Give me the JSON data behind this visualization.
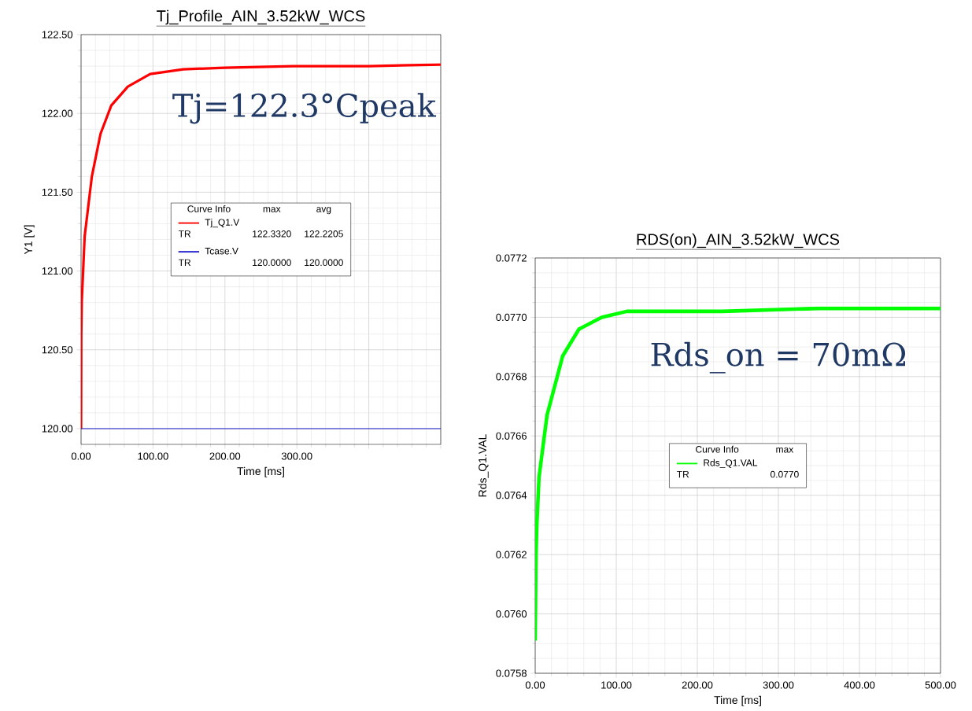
{
  "chart_data": [
    {
      "type": "line",
      "title": "Tj_Profile_AIN_3.52kW_WCS",
      "xlabel": "Time [ms]",
      "ylabel": "Y1 [V]",
      "legend_title": "Curve Info",
      "annotations": [
        "Tj=122.3°Cpeak",
        "max",
        "avg",
        "TR",
        "122.3320",
        "122.2205",
        "TR",
        "120.0000",
        "120.0000"
      ],
      "series": [
        {
          "name": "Tj_Q1.V",
          "color": "#ff0000",
          "x": [
            0,
            0.3,
            1,
            5,
            15,
            27,
            42,
            65,
            96,
            142,
            200,
            295,
            400,
            500
          ],
          "values": [
            120.0,
            120.6,
            120.81,
            121.22,
            121.6,
            121.87,
            122.05,
            122.17,
            122.25,
            122.28,
            122.29,
            122.3,
            122.3,
            122.31
          ]
        },
        {
          "name": "Tcase.V",
          "color": "#1a1acc",
          "x": [
            0,
            500
          ],
          "values": [
            120.0,
            120.0
          ]
        }
      ],
      "xlim": [
        0,
        500
      ],
      "ylim": [
        119.9,
        122.5
      ],
      "xticks": [
        {
          "value": 0,
          "label": "0.00"
        },
        {
          "value": 100,
          "label": "100.00"
        },
        {
          "value": 200,
          "label": "200.00"
        },
        {
          "value": 300,
          "label": "300.00"
        },
        {
          "value": 400,
          "label": null
        },
        {
          "value": 500,
          "label": null
        }
      ],
      "yticks": [
        {
          "value": 120,
          "label": "120.00"
        },
        {
          "value": 120.5,
          "label": "120.50"
        },
        {
          "value": 121,
          "label": "121.00"
        },
        {
          "value": 121.5,
          "label": "121.50"
        },
        {
          "value": 122,
          "label": "122.00"
        },
        {
          "value": 122.5,
          "label": "122.50"
        }
      ],
      "grid": true,
      "legend": "center"
    },
    {
      "type": "line",
      "title": "RDS(on)_AIN_3.52kW_WCS",
      "xlabel": "Time [ms]",
      "ylabel": "Rds_Q1.VAL",
      "legend_title": "Curve Info",
      "annotations": [
        "Rds_on = 70mΩ",
        "max",
        "TR",
        "0.0770"
      ],
      "series": [
        {
          "name": "Rds_Q1.VAL",
          "color": "#00ff00",
          "x": [
            0,
            1,
            2,
            4.7,
            14.6,
            34,
            54,
            82,
            113,
            231,
            350,
            500
          ],
          "values": [
            0.07591,
            0.0762,
            0.0763,
            0.07646,
            0.07667,
            0.07687,
            0.07696,
            0.077,
            0.07702,
            0.07702,
            0.07703,
            0.07703
          ]
        }
      ],
      "xlim": [
        0,
        500
      ],
      "ylim": [
        0.0758,
        0.0772
      ],
      "xticks": [
        {
          "value": 0,
          "label": "0.00"
        },
        {
          "value": 100,
          "label": "100.00"
        },
        {
          "value": 200,
          "label": "200.00"
        },
        {
          "value": 300,
          "label": "300.00"
        },
        {
          "value": 400,
          "label": "400.00"
        },
        {
          "value": 500,
          "label": "500.00"
        }
      ],
      "yticks": [
        {
          "value": 0.0758,
          "label": "0.0758"
        },
        {
          "value": 0.076,
          "label": "0.0760"
        },
        {
          "value": 0.0762,
          "label": "0.0762"
        },
        {
          "value": 0.0764,
          "label": "0.0764"
        },
        {
          "value": 0.0766,
          "label": "0.0766"
        },
        {
          "value": 0.0768,
          "label": "0.0768"
        },
        {
          "value": 0.077,
          "label": "0.0770"
        },
        {
          "value": 0.0772,
          "label": "0.0772"
        }
      ],
      "grid": true,
      "legend": "center"
    }
  ]
}
